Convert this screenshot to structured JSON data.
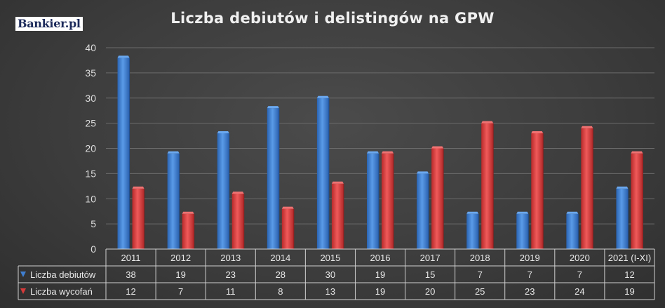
{
  "logo_text": "Bankier.pl",
  "chart_data": {
    "type": "bar",
    "title": "Liczba debiutów i delistingów na GPW",
    "categories": [
      "2011",
      "2012",
      "2013",
      "2014",
      "2015",
      "2016",
      "2017",
      "2018",
      "2019",
      "2020",
      "2021 (I-XI)"
    ],
    "series": [
      {
        "name": "Liczba debiutów",
        "color": "#3f7fd1",
        "values": [
          38,
          19,
          23,
          28,
          30,
          19,
          15,
          7,
          7,
          7,
          12
        ]
      },
      {
        "name": "Liczba wycofań",
        "color": "#d83a3a",
        "values": [
          12,
          7,
          11,
          8,
          13,
          19,
          20,
          25,
          23,
          24,
          19
        ]
      }
    ],
    "ylim": [
      0,
      40
    ],
    "yticks": [
      0,
      5,
      10,
      15,
      20,
      25,
      30,
      35,
      40
    ],
    "grid": true,
    "data_table": true,
    "legend": "data-table-left"
  }
}
